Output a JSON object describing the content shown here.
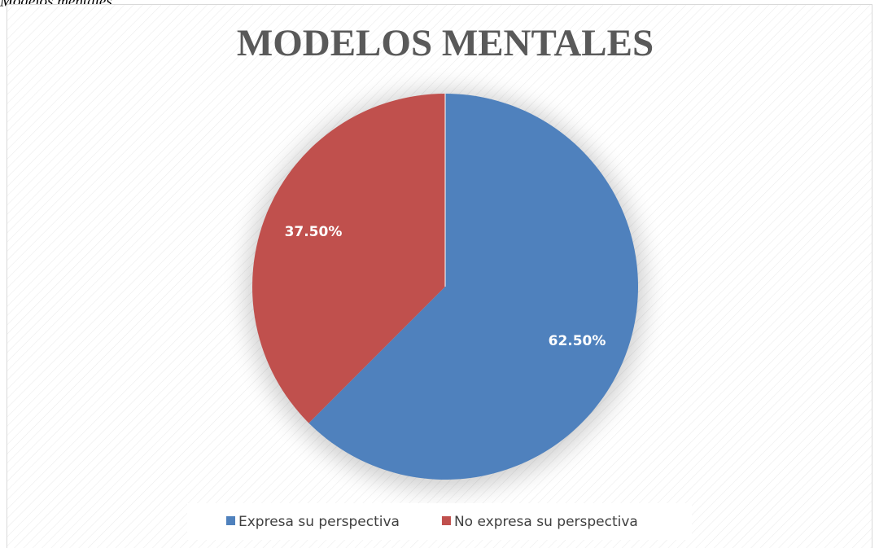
{
  "caption": "Modelos mentales",
  "chart_data": {
    "type": "pie",
    "title": "MODELOS MENTALES",
    "categories": [
      "Expresa su perspectiva",
      "No expresa su perspectiva"
    ],
    "values": [
      62.5,
      37.5
    ],
    "value_labels": [
      "62.50%",
      "37.50%"
    ],
    "colors": [
      "#4f81bd",
      "#c0504d"
    ],
    "legend": "bottom"
  }
}
